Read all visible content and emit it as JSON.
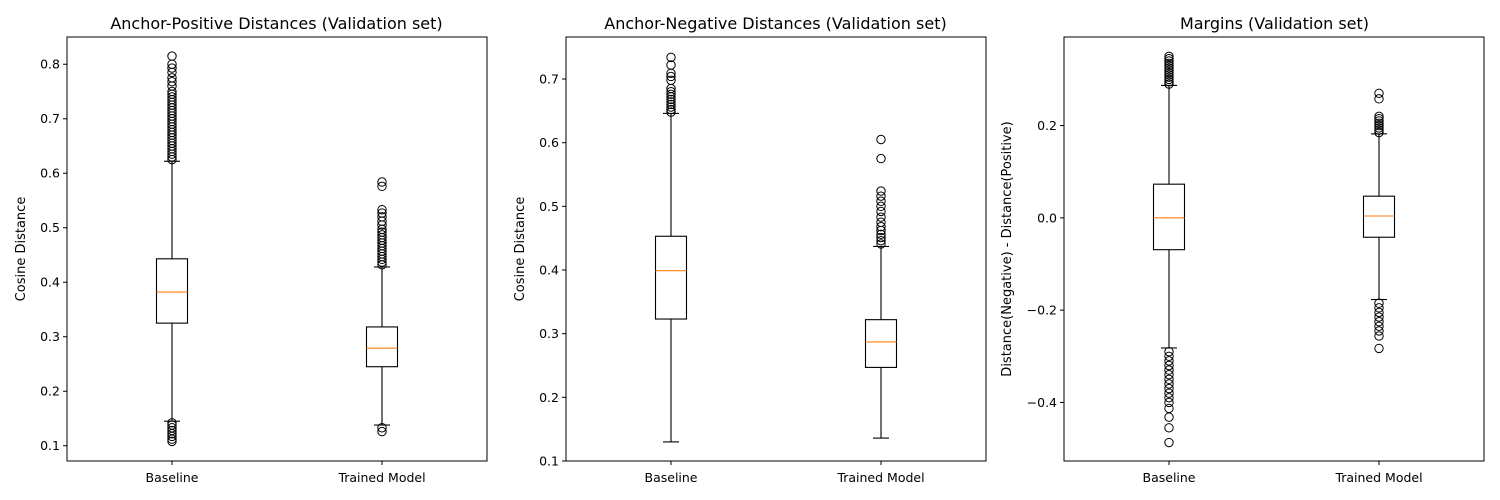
{
  "chart_data": [
    {
      "type": "box",
      "title": "Anchor-Positive Distances (Validation set)",
      "ylabel": "Cosine Distance",
      "categories": [
        "Baseline",
        "Trained Model"
      ],
      "ylim": [
        0.072,
        0.85
      ],
      "yticks": [
        0.1,
        0.2,
        0.3,
        0.4,
        0.5,
        0.6,
        0.7,
        0.8
      ],
      "ytick_labels": [
        "0.1",
        "0.2",
        "0.3",
        "0.4",
        "0.5",
        "0.6",
        "0.7",
        "0.8"
      ],
      "colors": {
        "box": "#000000",
        "median": "#ff7f0e"
      },
      "boxes": [
        {
          "name": "Baseline",
          "whislo": 0.145,
          "q1": 0.325,
          "med": 0.382,
          "q3": 0.443,
          "whishi": 0.622,
          "fliers": [
            0.108,
            0.112,
            0.117,
            0.122,
            0.128,
            0.133,
            0.138,
            0.142,
            0.625,
            0.63,
            0.635,
            0.64,
            0.645,
            0.65,
            0.655,
            0.66,
            0.665,
            0.67,
            0.675,
            0.68,
            0.685,
            0.69,
            0.695,
            0.7,
            0.705,
            0.71,
            0.715,
            0.72,
            0.725,
            0.73,
            0.735,
            0.74,
            0.745,
            0.75,
            0.76,
            0.768,
            0.775,
            0.785,
            0.793,
            0.8,
            0.815
          ]
        },
        {
          "name": "Trained Model",
          "whislo": 0.138,
          "q1": 0.245,
          "med": 0.279,
          "q3": 0.318,
          "whishi": 0.428,
          "fliers": [
            0.126,
            0.133,
            0.432,
            0.437,
            0.442,
            0.447,
            0.452,
            0.457,
            0.462,
            0.467,
            0.472,
            0.477,
            0.482,
            0.487,
            0.492,
            0.497,
            0.505,
            0.512,
            0.52,
            0.527,
            0.533,
            0.576,
            0.584
          ]
        }
      ]
    },
    {
      "type": "box",
      "title": "Anchor-Negative Distances (Validation set)",
      "ylabel": "Cosine Distance",
      "categories": [
        "Baseline",
        "Trained Model"
      ],
      "ylim": [
        0.1,
        0.766
      ],
      "yticks": [
        0.1,
        0.2,
        0.3,
        0.4,
        0.5,
        0.6,
        0.7
      ],
      "ytick_labels": [
        "0.1",
        "0.2",
        "0.3",
        "0.4",
        "0.5",
        "0.6",
        "0.7"
      ],
      "colors": {
        "box": "#000000",
        "median": "#ff7f0e"
      },
      "boxes": [
        {
          "name": "Baseline",
          "whislo": 0.13,
          "q1": 0.323,
          "med": 0.399,
          "q3": 0.453,
          "whishi": 0.646,
          "fliers": [
            0.648,
            0.652,
            0.656,
            0.66,
            0.664,
            0.668,
            0.672,
            0.676,
            0.68,
            0.685,
            0.698,
            0.704,
            0.709,
            0.722,
            0.734
          ]
        },
        {
          "name": "Trained Model",
          "whislo": 0.136,
          "q1": 0.247,
          "med": 0.287,
          "q3": 0.322,
          "whishi": 0.437,
          "fliers": [
            0.441,
            0.446,
            0.451,
            0.456,
            0.462,
            0.468,
            0.475,
            0.483,
            0.492,
            0.5,
            0.508,
            0.516,
            0.524,
            0.575,
            0.605
          ]
        }
      ]
    },
    {
      "type": "box",
      "title": "Margins (Validation set)",
      "ylabel": "Distance(Negative) - Distance(Positive)",
      "categories": [
        "Baseline",
        "Trained Model"
      ],
      "ylim": [
        -0.527,
        0.392
      ],
      "yticks": [
        -0.4,
        -0.2,
        0.0,
        0.2
      ],
      "ytick_labels": [
        "−0.4",
        "−0.2",
        "0.0",
        "0.2"
      ],
      "colors": {
        "box": "#000000",
        "median": "#ff7f0e"
      },
      "boxes": [
        {
          "name": "Baseline",
          "whislo": -0.282,
          "q1": -0.069,
          "med": 0.0,
          "q3": 0.073,
          "whishi": 0.287,
          "fliers": [
            -0.487,
            -0.455,
            -0.432,
            -0.413,
            -0.4,
            -0.39,
            -0.38,
            -0.37,
            -0.36,
            -0.35,
            -0.34,
            -0.33,
            -0.32,
            -0.31,
            -0.3,
            -0.29,
            0.29,
            0.295,
            0.3,
            0.305,
            0.31,
            0.315,
            0.32,
            0.325,
            0.33,
            0.335,
            0.34,
            0.345,
            0.35
          ]
        },
        {
          "name": "Trained Model",
          "whislo": -0.177,
          "q1": -0.042,
          "med": 0.004,
          "q3": 0.047,
          "whishi": 0.182,
          "fliers": [
            -0.283,
            -0.256,
            -0.245,
            -0.235,
            -0.225,
            -0.215,
            -0.205,
            -0.195,
            -0.185,
            0.185,
            0.19,
            0.195,
            0.2,
            0.205,
            0.21,
            0.215,
            0.22,
            0.258,
            0.27
          ]
        }
      ]
    }
  ]
}
